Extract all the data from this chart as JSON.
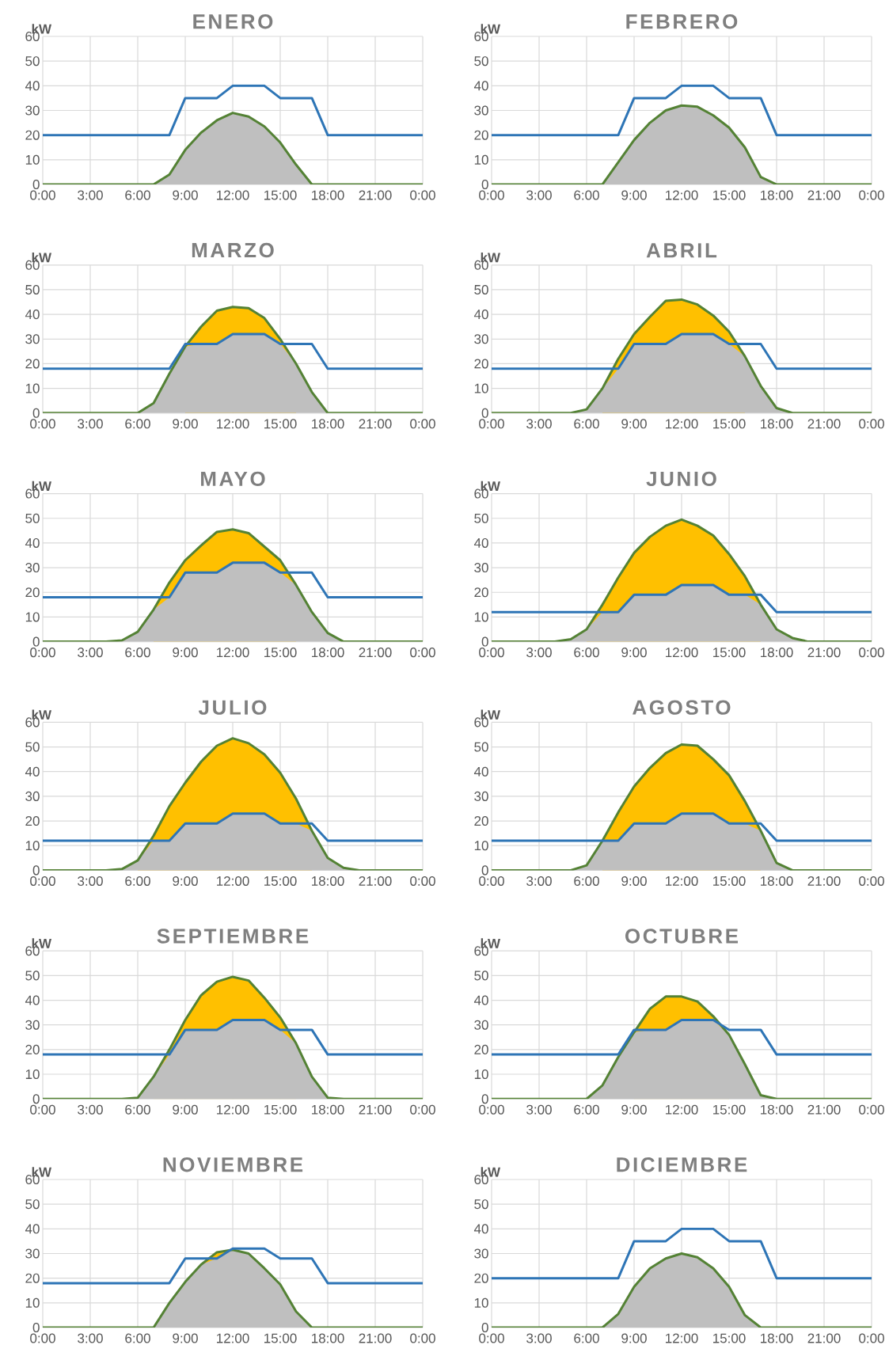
{
  "chart_data": [
    {
      "type": "line",
      "title": "ENERO",
      "ylabel": "kW",
      "x": [
        0,
        1,
        2,
        3,
        4,
        5,
        6,
        7,
        8,
        9,
        10,
        11,
        12,
        13,
        14,
        15,
        16,
        17,
        18,
        19,
        20,
        21,
        22,
        23,
        24
      ],
      "xlim": [
        0,
        24
      ],
      "xticks": [
        {
          "value": 0,
          "label": "0:00"
        },
        {
          "value": 3,
          "label": "3:00"
        },
        {
          "value": 6,
          "label": "6:00"
        },
        {
          "value": 9,
          "label": "9:00"
        },
        {
          "value": 12,
          "label": "12:00"
        },
        {
          "value": 15,
          "label": "15:00"
        },
        {
          "value": 18,
          "label": "18:00"
        },
        {
          "value": 21,
          "label": "21:00"
        },
        {
          "value": 24,
          "label": "0:00"
        }
      ],
      "ylim": [
        0,
        60
      ],
      "yticks": [
        0,
        10,
        20,
        30,
        40,
        50,
        60
      ],
      "grid": true,
      "series": [
        {
          "type": "line",
          "color": "#548235",
          "values": [
            0,
            0,
            0,
            0,
            0,
            0,
            0,
            0,
            4,
            14,
            21,
            26,
            29,
            27.5,
            23.5,
            17,
            8,
            0,
            0,
            0,
            0,
            0,
            0,
            0,
            0
          ]
        },
        {
          "type": "area",
          "color": "#bfbfbf",
          "values": [
            null,
            null,
            null,
            null,
            null,
            null,
            null,
            0,
            4,
            14,
            21,
            26,
            29,
            27.5,
            23.5,
            17,
            8,
            0,
            null,
            null,
            null,
            null,
            null,
            null,
            null
          ]
        },
        {
          "color": "#2e75b6",
          "values": [
            20,
            20,
            20,
            20,
            20,
            20,
            20,
            20,
            20,
            35,
            35,
            35,
            40,
            40,
            40,
            35,
            35,
            35,
            20,
            20,
            20,
            20,
            20,
            20,
            20
          ]
        }
      ]
    },
    {
      "type": "line",
      "title": "FEBRERO",
      "ylabel": "kW",
      "x": [
        0,
        1,
        2,
        3,
        4,
        5,
        6,
        7,
        8,
        9,
        10,
        11,
        12,
        13,
        14,
        15,
        16,
        17,
        18,
        19,
        20,
        21,
        22,
        23,
        24
      ],
      "xlim": [
        0,
        24
      ],
      "xticks": [
        {
          "value": 0,
          "label": "0:00"
        },
        {
          "value": 3,
          "label": "3:00"
        },
        {
          "value": 6,
          "label": "6:00"
        },
        {
          "value": 9,
          "label": "9:00"
        },
        {
          "value": 12,
          "label": "12:00"
        },
        {
          "value": 15,
          "label": "15:00"
        },
        {
          "value": 18,
          "label": "18:00"
        },
        {
          "value": 21,
          "label": "21:00"
        },
        {
          "value": 24,
          "label": "0:00"
        }
      ],
      "ylim": [
        0,
        60
      ],
      "yticks": [
        0,
        10,
        20,
        30,
        40,
        50,
        60
      ],
      "grid": true,
      "series": [
        {
          "type": "line",
          "color": "#548235",
          "values": [
            0,
            0,
            0,
            0,
            0,
            0,
            0,
            0,
            9,
            18,
            25,
            30,
            32,
            31.5,
            28,
            23,
            15,
            3,
            0,
            0,
            0,
            0,
            0,
            0,
            0
          ]
        },
        {
          "type": "area",
          "color": "#bfbfbf",
          "values": [
            null,
            null,
            null,
            null,
            null,
            null,
            null,
            0,
            9,
            18,
            25,
            30,
            32,
            31.5,
            28,
            23,
            15,
            3,
            0,
            null,
            null,
            null,
            null,
            null,
            null
          ]
        },
        {
          "color": "#2e75b6",
          "values": [
            20,
            20,
            20,
            20,
            20,
            20,
            20,
            20,
            20,
            35,
            35,
            35,
            40,
            40,
            40,
            35,
            35,
            35,
            20,
            20,
            20,
            20,
            20,
            20,
            20
          ]
        }
      ]
    },
    {
      "type": "line",
      "title": "MARZO",
      "ylabel": "kW",
      "x": [
        0,
        1,
        2,
        3,
        4,
        5,
        6,
        7,
        8,
        9,
        10,
        11,
        12,
        13,
        14,
        15,
        16,
        17,
        18,
        19,
        20,
        21,
        22,
        23,
        24
      ],
      "xlim": [
        0,
        24
      ],
      "xticks": [
        {
          "value": 0,
          "label": "0:00"
        },
        {
          "value": 3,
          "label": "3:00"
        },
        {
          "value": 6,
          "label": "6:00"
        },
        {
          "value": 9,
          "label": "9:00"
        },
        {
          "value": 12,
          "label": "12:00"
        },
        {
          "value": 15,
          "label": "15:00"
        },
        {
          "value": 18,
          "label": "18:00"
        },
        {
          "value": 21,
          "label": "21:00"
        },
        {
          "value": 24,
          "label": "0:00"
        }
      ],
      "ylim": [
        0,
        60
      ],
      "yticks": [
        0,
        10,
        20,
        30,
        40,
        50,
        60
      ],
      "grid": true,
      "series": [
        {
          "type": "area",
          "color": "#ffc000",
          "values": [
            null,
            null,
            null,
            null,
            null,
            null,
            null,
            null,
            null,
            27,
            35,
            41.5,
            43,
            42.5,
            38.5,
            30,
            20,
            null,
            null,
            null,
            null,
            null,
            null,
            null,
            null
          ]
        },
        {
          "type": "area",
          "color": "#bfbfbf",
          "values": [
            0,
            0,
            0,
            0,
            0,
            0,
            0,
            4,
            16,
            27,
            28,
            28,
            32,
            32,
            32,
            28,
            20,
            8.5,
            0,
            0,
            0,
            0,
            0,
            0,
            0
          ]
        },
        {
          "color": "#548235",
          "values": [
            0,
            0,
            0,
            0,
            0,
            0,
            0,
            4,
            16,
            27,
            35,
            41.5,
            43,
            42.5,
            38.5,
            30,
            20,
            8.5,
            0,
            0,
            0,
            0,
            0,
            0,
            0
          ]
        },
        {
          "color": "#2e75b6",
          "values": [
            18,
            18,
            18,
            18,
            18,
            18,
            18,
            18,
            18,
            28,
            28,
            28,
            32,
            32,
            32,
            28,
            28,
            28,
            18,
            18,
            18,
            18,
            18,
            18,
            18
          ]
        }
      ]
    },
    {
      "type": "line",
      "title": "ABRIL",
      "ylabel": "kW",
      "x": [
        0,
        1,
        2,
        3,
        4,
        5,
        6,
        7,
        8,
        9,
        10,
        11,
        12,
        13,
        14,
        15,
        16,
        17,
        18,
        19,
        20,
        21,
        22,
        23,
        24
      ],
      "xlim": [
        0,
        24
      ],
      "xticks": [
        {
          "value": 0,
          "label": "0:00"
        },
        {
          "value": 3,
          "label": "3:00"
        },
        {
          "value": 6,
          "label": "6:00"
        },
        {
          "value": 9,
          "label": "9:00"
        },
        {
          "value": 12,
          "label": "12:00"
        },
        {
          "value": 15,
          "label": "15:00"
        },
        {
          "value": 18,
          "label": "18:00"
        },
        {
          "value": 21,
          "label": "21:00"
        },
        {
          "value": 24,
          "label": "0:00"
        }
      ],
      "ylim": [
        0,
        60
      ],
      "yticks": [
        0,
        10,
        20,
        30,
        40,
        50,
        60
      ],
      "grid": true,
      "series": [
        {
          "type": "area",
          "color": "#ffc000",
          "values": [
            null,
            null,
            null,
            null,
            null,
            null,
            null,
            10,
            22,
            32,
            39,
            45.5,
            46,
            44,
            39.5,
            33,
            23,
            null,
            null,
            null,
            null,
            null,
            null,
            null,
            null
          ]
        },
        {
          "type": "area",
          "color": "#bfbfbf",
          "values": [
            0,
            0,
            0,
            0,
            0,
            0,
            1.5,
            10,
            18,
            28,
            28,
            28,
            32,
            32,
            32,
            28,
            23,
            11,
            2,
            0,
            0,
            0,
            0,
            0,
            0
          ]
        },
        {
          "color": "#548235",
          "values": [
            0,
            0,
            0,
            0,
            0,
            0,
            1.5,
            10,
            22,
            32,
            39,
            45.5,
            46,
            44,
            39.5,
            33,
            23,
            11,
            2,
            0,
            0,
            0,
            0,
            0,
            0
          ]
        },
        {
          "color": "#2e75b6",
          "values": [
            18,
            18,
            18,
            18,
            18,
            18,
            18,
            18,
            18,
            28,
            28,
            28,
            32,
            32,
            32,
            28,
            28,
            28,
            18,
            18,
            18,
            18,
            18,
            18,
            18
          ]
        }
      ]
    },
    {
      "type": "line",
      "title": "MAYO",
      "ylabel": "kW",
      "x": [
        0,
        1,
        2,
        3,
        4,
        5,
        6,
        7,
        8,
        9,
        10,
        11,
        12,
        13,
        14,
        15,
        16,
        17,
        18,
        19,
        20,
        21,
        22,
        23,
        24
      ],
      "xlim": [
        0,
        24
      ],
      "xticks": [
        {
          "value": 0,
          "label": "0:00"
        },
        {
          "value": 3,
          "label": "3:00"
        },
        {
          "value": 6,
          "label": "6:00"
        },
        {
          "value": 9,
          "label": "9:00"
        },
        {
          "value": 12,
          "label": "12:00"
        },
        {
          "value": 15,
          "label": "15:00"
        },
        {
          "value": 18,
          "label": "18:00"
        },
        {
          "value": 21,
          "label": "21:00"
        },
        {
          "value": 24,
          "label": "0:00"
        }
      ],
      "ylim": [
        0,
        60
      ],
      "yticks": [
        0,
        10,
        20,
        30,
        40,
        50,
        60
      ],
      "grid": true,
      "series": [
        {
          "type": "area",
          "color": "#ffc000",
          "values": [
            null,
            null,
            null,
            null,
            null,
            null,
            null,
            13,
            24,
            33,
            39,
            44.5,
            45.5,
            44,
            38.5,
            33,
            23,
            null,
            null,
            null,
            null,
            null,
            null,
            null,
            null
          ]
        },
        {
          "type": "area",
          "color": "#bfbfbf",
          "values": [
            0,
            0,
            0,
            0,
            0,
            0.5,
            4,
            13,
            18,
            28,
            28,
            28,
            32,
            32,
            32,
            28,
            23,
            12,
            3.5,
            0,
            0,
            0,
            0,
            0,
            0
          ]
        },
        {
          "color": "#548235",
          "values": [
            0,
            0,
            0,
            0,
            0,
            0.5,
            4,
            13,
            24,
            33,
            39,
            44.5,
            45.5,
            44,
            38.5,
            33,
            23,
            12,
            3.5,
            0,
            0,
            0,
            0,
            0,
            0
          ]
        },
        {
          "color": "#2e75b6",
          "values": [
            18,
            18,
            18,
            18,
            18,
            18,
            18,
            18,
            18,
            28,
            28,
            28,
            32,
            32,
            32,
            28,
            28,
            28,
            18,
            18,
            18,
            18,
            18,
            18,
            18
          ]
        }
      ]
    },
    {
      "type": "line",
      "title": "JUNIO",
      "ylabel": "kW",
      "x": [
        0,
        1,
        2,
        3,
        4,
        5,
        6,
        7,
        8,
        9,
        10,
        11,
        12,
        13,
        14,
        15,
        16,
        17,
        18,
        19,
        20,
        21,
        22,
        23,
        24
      ],
      "xlim": [
        0,
        24
      ],
      "xticks": [
        {
          "value": 0,
          "label": "0:00"
        },
        {
          "value": 3,
          "label": "3:00"
        },
        {
          "value": 6,
          "label": "6:00"
        },
        {
          "value": 9,
          "label": "9:00"
        },
        {
          "value": 12,
          "label": "12:00"
        },
        {
          "value": 15,
          "label": "15:00"
        },
        {
          "value": 18,
          "label": "18:00"
        },
        {
          "value": 21,
          "label": "21:00"
        },
        {
          "value": 24,
          "label": "0:00"
        }
      ],
      "ylim": [
        0,
        60
      ],
      "yticks": [
        0,
        10,
        20,
        30,
        40,
        50,
        60
      ],
      "grid": true,
      "series": [
        {
          "type": "area",
          "color": "#ffc000",
          "values": [
            null,
            null,
            null,
            null,
            null,
            null,
            5,
            15,
            26,
            36,
            42.5,
            47,
            49.5,
            47,
            43,
            35.5,
            26.5,
            15,
            null,
            null,
            null,
            null,
            null,
            null,
            null
          ]
        },
        {
          "type": "area",
          "color": "#bfbfbf",
          "values": [
            0,
            0,
            0,
            0,
            0,
            1,
            5,
            12,
            12,
            19,
            19,
            19,
            23,
            23,
            23,
            19,
            19,
            15,
            5,
            1.5,
            0,
            0,
            0,
            0,
            0
          ]
        },
        {
          "color": "#548235",
          "values": [
            0,
            0,
            0,
            0,
            0,
            1,
            5,
            15,
            26,
            36,
            42.5,
            47,
            49.5,
            47,
            43,
            35.5,
            26.5,
            15,
            5,
            1.5,
            0,
            0,
            0,
            0,
            0
          ]
        },
        {
          "color": "#2e75b6",
          "values": [
            12,
            12,
            12,
            12,
            12,
            12,
            12,
            12,
            12,
            19,
            19,
            19,
            23,
            23,
            23,
            19,
            19,
            19,
            12,
            12,
            12,
            12,
            12,
            12,
            12
          ]
        }
      ]
    },
    {
      "type": "line",
      "title": "JULIO",
      "ylabel": "kW",
      "x": [
        0,
        1,
        2,
        3,
        4,
        5,
        6,
        7,
        8,
        9,
        10,
        11,
        12,
        13,
        14,
        15,
        16,
        17,
        18,
        19,
        20,
        21,
        22,
        23,
        24
      ],
      "xlim": [
        0,
        24
      ],
      "xticks": [
        {
          "value": 0,
          "label": "0:00"
        },
        {
          "value": 3,
          "label": "3:00"
        },
        {
          "value": 6,
          "label": "6:00"
        },
        {
          "value": 9,
          "label": "9:00"
        },
        {
          "value": 12,
          "label": "12:00"
        },
        {
          "value": 15,
          "label": "15:00"
        },
        {
          "value": 18,
          "label": "18:00"
        },
        {
          "value": 21,
          "label": "21:00"
        },
        {
          "value": 24,
          "label": "0:00"
        }
      ],
      "ylim": [
        0,
        60
      ],
      "yticks": [
        0,
        10,
        20,
        30,
        40,
        50,
        60
      ],
      "grid": true,
      "series": [
        {
          "type": "area",
          "color": "#ffc000",
          "values": [
            null,
            null,
            null,
            null,
            null,
            null,
            4,
            14,
            26,
            35.5,
            44,
            50.5,
            53.5,
            51.5,
            47,
            39.5,
            29,
            16,
            null,
            null,
            null,
            null,
            null,
            null,
            null
          ]
        },
        {
          "type": "area",
          "color": "#bfbfbf",
          "values": [
            0,
            0,
            0,
            0,
            0,
            0.5,
            4,
            12,
            12,
            19,
            19,
            19,
            23,
            23,
            23,
            19,
            19,
            16,
            5,
            1,
            0,
            0,
            0,
            0,
            0
          ]
        },
        {
          "color": "#548235",
          "values": [
            0,
            0,
            0,
            0,
            0,
            0.5,
            4,
            14,
            26,
            35.5,
            44,
            50.5,
            53.5,
            51.5,
            47,
            39.5,
            29,
            16,
            5,
            1,
            0,
            0,
            0,
            0,
            0
          ]
        },
        {
          "color": "#2e75b6",
          "values": [
            12,
            12,
            12,
            12,
            12,
            12,
            12,
            12,
            12,
            19,
            19,
            19,
            23,
            23,
            23,
            19,
            19,
            19,
            12,
            12,
            12,
            12,
            12,
            12,
            12
          ]
        }
      ]
    },
    {
      "type": "line",
      "title": "AGOSTO",
      "ylabel": "kW",
      "x": [
        0,
        1,
        2,
        3,
        4,
        5,
        6,
        7,
        8,
        9,
        10,
        11,
        12,
        13,
        14,
        15,
        16,
        17,
        18,
        19,
        20,
        21,
        22,
        23,
        24
      ],
      "xlim": [
        0,
        24
      ],
      "xticks": [
        {
          "value": 0,
          "label": "0:00"
        },
        {
          "value": 3,
          "label": "3:00"
        },
        {
          "value": 6,
          "label": "6:00"
        },
        {
          "value": 9,
          "label": "9:00"
        },
        {
          "value": 12,
          "label": "12:00"
        },
        {
          "value": 15,
          "label": "15:00"
        },
        {
          "value": 18,
          "label": "18:00"
        },
        {
          "value": 21,
          "label": "21:00"
        },
        {
          "value": 24,
          "label": "0:00"
        }
      ],
      "ylim": [
        0,
        60
      ],
      "yticks": [
        0,
        10,
        20,
        30,
        40,
        50,
        60
      ],
      "grid": true,
      "series": [
        {
          "type": "area",
          "color": "#ffc000",
          "values": [
            null,
            null,
            null,
            null,
            null,
            null,
            null,
            12,
            23.5,
            34,
            41.5,
            47.5,
            51,
            50.5,
            45,
            38.5,
            28,
            16,
            null,
            null,
            null,
            null,
            null,
            null,
            null
          ]
        },
        {
          "type": "area",
          "color": "#bfbfbf",
          "values": [
            0,
            0,
            0,
            0,
            0,
            0,
            2,
            12,
            12,
            19,
            19,
            19,
            23,
            23,
            23,
            19,
            19,
            16,
            3,
            0,
            0,
            0,
            0,
            0,
            0
          ]
        },
        {
          "color": "#548235",
          "values": [
            0,
            0,
            0,
            0,
            0,
            0,
            2,
            12,
            23.5,
            34,
            41.5,
            47.5,
            51,
            50.5,
            45,
            38.5,
            28,
            16,
            3,
            0,
            0,
            0,
            0,
            0,
            0
          ]
        },
        {
          "color": "#2e75b6",
          "values": [
            12,
            12,
            12,
            12,
            12,
            12,
            12,
            12,
            12,
            19,
            19,
            19,
            23,
            23,
            23,
            19,
            19,
            19,
            12,
            12,
            12,
            12,
            12,
            12,
            12
          ]
        }
      ]
    },
    {
      "type": "line",
      "title": "SEPTIEMBRE",
      "ylabel": "kW",
      "x": [
        0,
        1,
        2,
        3,
        4,
        5,
        6,
        7,
        8,
        9,
        10,
        11,
        12,
        13,
        14,
        15,
        16,
        17,
        18,
        19,
        20,
        21,
        22,
        23,
        24
      ],
      "xlim": [
        0,
        24
      ],
      "xticks": [
        {
          "value": 0,
          "label": "0:00"
        },
        {
          "value": 3,
          "label": "3:00"
        },
        {
          "value": 6,
          "label": "6:00"
        },
        {
          "value": 9,
          "label": "9:00"
        },
        {
          "value": 12,
          "label": "12:00"
        },
        {
          "value": 15,
          "label": "15:00"
        },
        {
          "value": 18,
          "label": "18:00"
        },
        {
          "value": 21,
          "label": "21:00"
        },
        {
          "value": 24,
          "label": "0:00"
        }
      ],
      "ylim": [
        0,
        60
      ],
      "yticks": [
        0,
        10,
        20,
        30,
        40,
        50,
        60
      ],
      "grid": true,
      "series": [
        {
          "type": "area",
          "color": "#ffc000",
          "values": [
            null,
            null,
            null,
            null,
            null,
            null,
            null,
            9,
            20,
            32,
            42,
            47.5,
            49.5,
            48,
            41,
            33,
            22.5,
            null,
            null,
            null,
            null,
            null,
            null,
            null,
            null
          ]
        },
        {
          "type": "area",
          "color": "#bfbfbf",
          "values": [
            0,
            0,
            0,
            0,
            0,
            0,
            0.5,
            9,
            18,
            28,
            28,
            28,
            32,
            32,
            32,
            28,
            22.5,
            9,
            0.5,
            0,
            0,
            0,
            0,
            0,
            0
          ]
        },
        {
          "color": "#548235",
          "values": [
            0,
            0,
            0,
            0,
            0,
            0,
            0.5,
            9,
            20,
            32,
            42,
            47.5,
            49.5,
            48,
            41,
            33,
            22.5,
            9,
            0.5,
            0,
            0,
            0,
            0,
            0,
            0
          ]
        },
        {
          "color": "#2e75b6",
          "values": [
            18,
            18,
            18,
            18,
            18,
            18,
            18,
            18,
            18,
            28,
            28,
            28,
            32,
            32,
            32,
            28,
            28,
            28,
            18,
            18,
            18,
            18,
            18,
            18,
            18
          ]
        }
      ]
    },
    {
      "type": "line",
      "title": "OCTUBRE",
      "ylabel": "kW",
      "x": [
        0,
        1,
        2,
        3,
        4,
        5,
        6,
        7,
        8,
        9,
        10,
        11,
        12,
        13,
        14,
        15,
        16,
        17,
        18,
        19,
        20,
        21,
        22,
        23,
        24
      ],
      "xlim": [
        0,
        24
      ],
      "xticks": [
        {
          "value": 0,
          "label": "0:00"
        },
        {
          "value": 3,
          "label": "3:00"
        },
        {
          "value": 6,
          "label": "6:00"
        },
        {
          "value": 9,
          "label": "9:00"
        },
        {
          "value": 12,
          "label": "12:00"
        },
        {
          "value": 15,
          "label": "15:00"
        },
        {
          "value": 18,
          "label": "18:00"
        },
        {
          "value": 21,
          "label": "21:00"
        },
        {
          "value": 24,
          "label": "0:00"
        }
      ],
      "ylim": [
        0,
        60
      ],
      "yticks": [
        0,
        10,
        20,
        30,
        40,
        50,
        60
      ],
      "grid": true,
      "series": [
        {
          "type": "area",
          "color": "#ffc000",
          "values": [
            null,
            null,
            null,
            null,
            null,
            null,
            null,
            null,
            null,
            27,
            36.5,
            41.5,
            41.5,
            39.5,
            33.5,
            26,
            null,
            null,
            null,
            null,
            null,
            null,
            null,
            null,
            null
          ]
        },
        {
          "type": "area",
          "color": "#bfbfbf",
          "values": [
            0,
            0,
            0,
            0,
            0,
            0,
            0,
            5.5,
            17,
            27,
            28,
            28,
            32,
            32,
            32,
            26,
            14,
            1.5,
            0,
            0,
            0,
            0,
            0,
            0,
            0
          ]
        },
        {
          "color": "#548235",
          "values": [
            0,
            0,
            0,
            0,
            0,
            0,
            0,
            5.5,
            17,
            27,
            36.5,
            41.5,
            41.5,
            39.5,
            33.5,
            26,
            14,
            1.5,
            0,
            0,
            0,
            0,
            0,
            0,
            0
          ]
        },
        {
          "color": "#2e75b6",
          "values": [
            18,
            18,
            18,
            18,
            18,
            18,
            18,
            18,
            18,
            28,
            28,
            28,
            32,
            32,
            32,
            28,
            28,
            28,
            18,
            18,
            18,
            18,
            18,
            18,
            18
          ]
        }
      ]
    },
    {
      "type": "line",
      "title": "NOVIEMBRE",
      "ylabel": "kW",
      "x": [
        0,
        1,
        2,
        3,
        4,
        5,
        6,
        7,
        8,
        9,
        10,
        11,
        12,
        13,
        14,
        15,
        16,
        17,
        18,
        19,
        20,
        21,
        22,
        23,
        24
      ],
      "xlim": [
        0,
        24
      ],
      "xticks": [
        {
          "value": 0,
          "label": "0:00"
        },
        {
          "value": 3,
          "label": "3:00"
        },
        {
          "value": 6,
          "label": "6:00"
        },
        {
          "value": 9,
          "label": "9:00"
        },
        {
          "value": 12,
          "label": "12:00"
        },
        {
          "value": 15,
          "label": "15:00"
        },
        {
          "value": 18,
          "label": "18:00"
        },
        {
          "value": 21,
          "label": "21:00"
        },
        {
          "value": 24,
          "label": "0:00"
        }
      ],
      "ylim": [
        0,
        60
      ],
      "yticks": [
        0,
        10,
        20,
        30,
        40,
        50,
        60
      ],
      "grid": true,
      "series": [
        {
          "type": "area",
          "color": "#ffc000",
          "values": [
            null,
            null,
            null,
            null,
            null,
            null,
            null,
            null,
            null,
            null,
            25.5,
            30.5,
            31.5,
            null,
            null,
            null,
            null,
            null,
            null,
            null,
            null,
            null,
            null,
            null,
            null
          ]
        },
        {
          "type": "line",
          "color": "#548235",
          "values": [
            0,
            0,
            0,
            0,
            0,
            0,
            0,
            0,
            10,
            18.5,
            25.5,
            30.5,
            31.5,
            30,
            24,
            17.5,
            6.5,
            0,
            0,
            0,
            0,
            0,
            0,
            0,
            0
          ]
        },
        {
          "type": "area",
          "color": "#bfbfbf",
          "values": [
            null,
            null,
            null,
            null,
            null,
            null,
            null,
            0,
            10,
            18.5,
            25.5,
            28,
            31.5,
            30,
            24,
            17.5,
            6.5,
            0,
            null,
            null,
            null,
            null,
            null,
            null,
            null
          ]
        },
        {
          "color": "#2e75b6",
          "values": [
            18,
            18,
            18,
            18,
            18,
            18,
            18,
            18,
            18,
            28,
            28,
            28,
            32,
            32,
            32,
            28,
            28,
            28,
            18,
            18,
            18,
            18,
            18,
            18,
            18
          ]
        }
      ]
    },
    {
      "type": "line",
      "title": "DICIEMBRE",
      "ylabel": "kW",
      "x": [
        0,
        1,
        2,
        3,
        4,
        5,
        6,
        7,
        8,
        9,
        10,
        11,
        12,
        13,
        14,
        15,
        16,
        17,
        18,
        19,
        20,
        21,
        22,
        23,
        24
      ],
      "xlim": [
        0,
        24
      ],
      "xticks": [
        {
          "value": 0,
          "label": "0:00"
        },
        {
          "value": 3,
          "label": "3:00"
        },
        {
          "value": 6,
          "label": "6:00"
        },
        {
          "value": 9,
          "label": "9:00"
        },
        {
          "value": 12,
          "label": "12:00"
        },
        {
          "value": 15,
          "label": "15:00"
        },
        {
          "value": 18,
          "label": "18:00"
        },
        {
          "value": 21,
          "label": "21:00"
        },
        {
          "value": 24,
          "label": "0:00"
        }
      ],
      "ylim": [
        0,
        60
      ],
      "yticks": [
        0,
        10,
        20,
        30,
        40,
        50,
        60
      ],
      "grid": true,
      "series": [
        {
          "type": "line",
          "color": "#548235",
          "values": [
            0,
            0,
            0,
            0,
            0,
            0,
            0,
            0,
            5.5,
            16.5,
            24,
            28,
            30,
            28.5,
            24,
            16.5,
            5,
            0,
            0,
            0,
            0,
            0,
            0,
            0,
            0
          ]
        },
        {
          "type": "area",
          "color": "#bfbfbf",
          "values": [
            null,
            null,
            null,
            null,
            null,
            null,
            null,
            0,
            5.5,
            16.5,
            24,
            28,
            30,
            28.5,
            24,
            16.5,
            5,
            0,
            null,
            null,
            null,
            null,
            null,
            null,
            null
          ]
        },
        {
          "color": "#2e75b6",
          "values": [
            20,
            20,
            20,
            20,
            20,
            20,
            20,
            20,
            20,
            35,
            35,
            35,
            40,
            40,
            40,
            35,
            35,
            35,
            20,
            20,
            20,
            20,
            20,
            20,
            20
          ]
        }
      ]
    }
  ]
}
